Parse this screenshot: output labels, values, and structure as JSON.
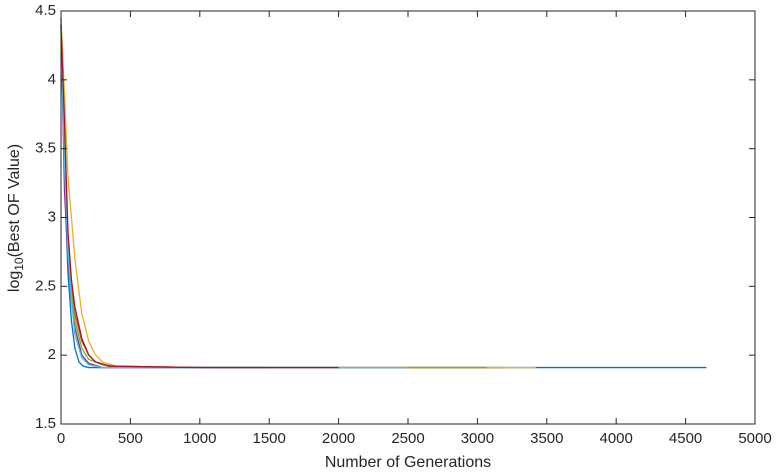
{
  "chart_data": {
    "type": "line",
    "x_label": "Number of Generations",
    "y_label_parts": [
      "log",
      "10",
      "(Best OF Value)"
    ],
    "xlim": [
      0,
      5000
    ],
    "ylim": [
      1.5,
      4.5
    ],
    "xticks": [
      0,
      500,
      1000,
      1500,
      2000,
      2500,
      3000,
      3500,
      4000,
      4500,
      5000
    ],
    "yticks": [
      1.5,
      2,
      2.5,
      3,
      3.5,
      4,
      4.5
    ],
    "grid": false,
    "series": [
      {
        "color": "#0072bd",
        "x": [
          0,
          25,
          50,
          75,
          100,
          130,
          160,
          200,
          300,
          1000,
          2000,
          3000,
          4000,
          4650
        ],
        "values": [
          4.45,
          3.3,
          2.6,
          2.25,
          2.05,
          1.95,
          1.92,
          1.91,
          1.91,
          1.91,
          1.91,
          1.91,
          1.91,
          1.91
        ]
      },
      {
        "color": "#d95319",
        "x": [
          0,
          25,
          50,
          75,
          100,
          150,
          200,
          250,
          350,
          1000,
          2000,
          3200
        ],
        "values": [
          4.4,
          3.6,
          2.85,
          2.5,
          2.3,
          2.1,
          2.0,
          1.95,
          1.92,
          1.91,
          1.91,
          1.91
        ]
      },
      {
        "color": "#edb120",
        "x": [
          0,
          25,
          50,
          100,
          150,
          200,
          250,
          300,
          400,
          1000,
          2000,
          3420
        ],
        "values": [
          4.45,
          3.9,
          3.3,
          2.7,
          2.3,
          2.1,
          2.0,
          1.95,
          1.92,
          1.91,
          1.91,
          1.91
        ]
      },
      {
        "color": "#7e2f8e",
        "x": [
          0,
          25,
          50,
          75,
          100,
          150,
          200,
          300,
          1000,
          1500
        ],
        "values": [
          4.4,
          3.2,
          2.7,
          2.4,
          2.2,
          2.0,
          1.94,
          1.91,
          1.91,
          1.91
        ]
      },
      {
        "color": "#77ac30",
        "x": [
          0,
          25,
          50,
          75,
          100,
          150,
          200,
          300,
          400,
          1000,
          2000,
          3070
        ],
        "values": [
          4.4,
          3.5,
          2.8,
          2.45,
          2.25,
          2.05,
          1.97,
          1.93,
          1.92,
          1.91,
          1.91,
          1.91
        ]
      },
      {
        "color": "#4dbeee",
        "x": [
          0,
          25,
          50,
          75,
          100,
          150,
          200,
          300,
          1000,
          2500
        ],
        "values": [
          4.4,
          3.4,
          2.75,
          2.4,
          2.15,
          1.98,
          1.93,
          1.91,
          1.91,
          1.91
        ]
      },
      {
        "color": "#a2142f",
        "x": [
          0,
          25,
          50,
          75,
          100,
          150,
          200,
          250,
          350,
          1000,
          2000
        ],
        "values": [
          4.4,
          3.7,
          2.9,
          2.55,
          2.35,
          2.12,
          2.0,
          1.95,
          1.92,
          1.91,
          1.91
        ]
      }
    ]
  }
}
